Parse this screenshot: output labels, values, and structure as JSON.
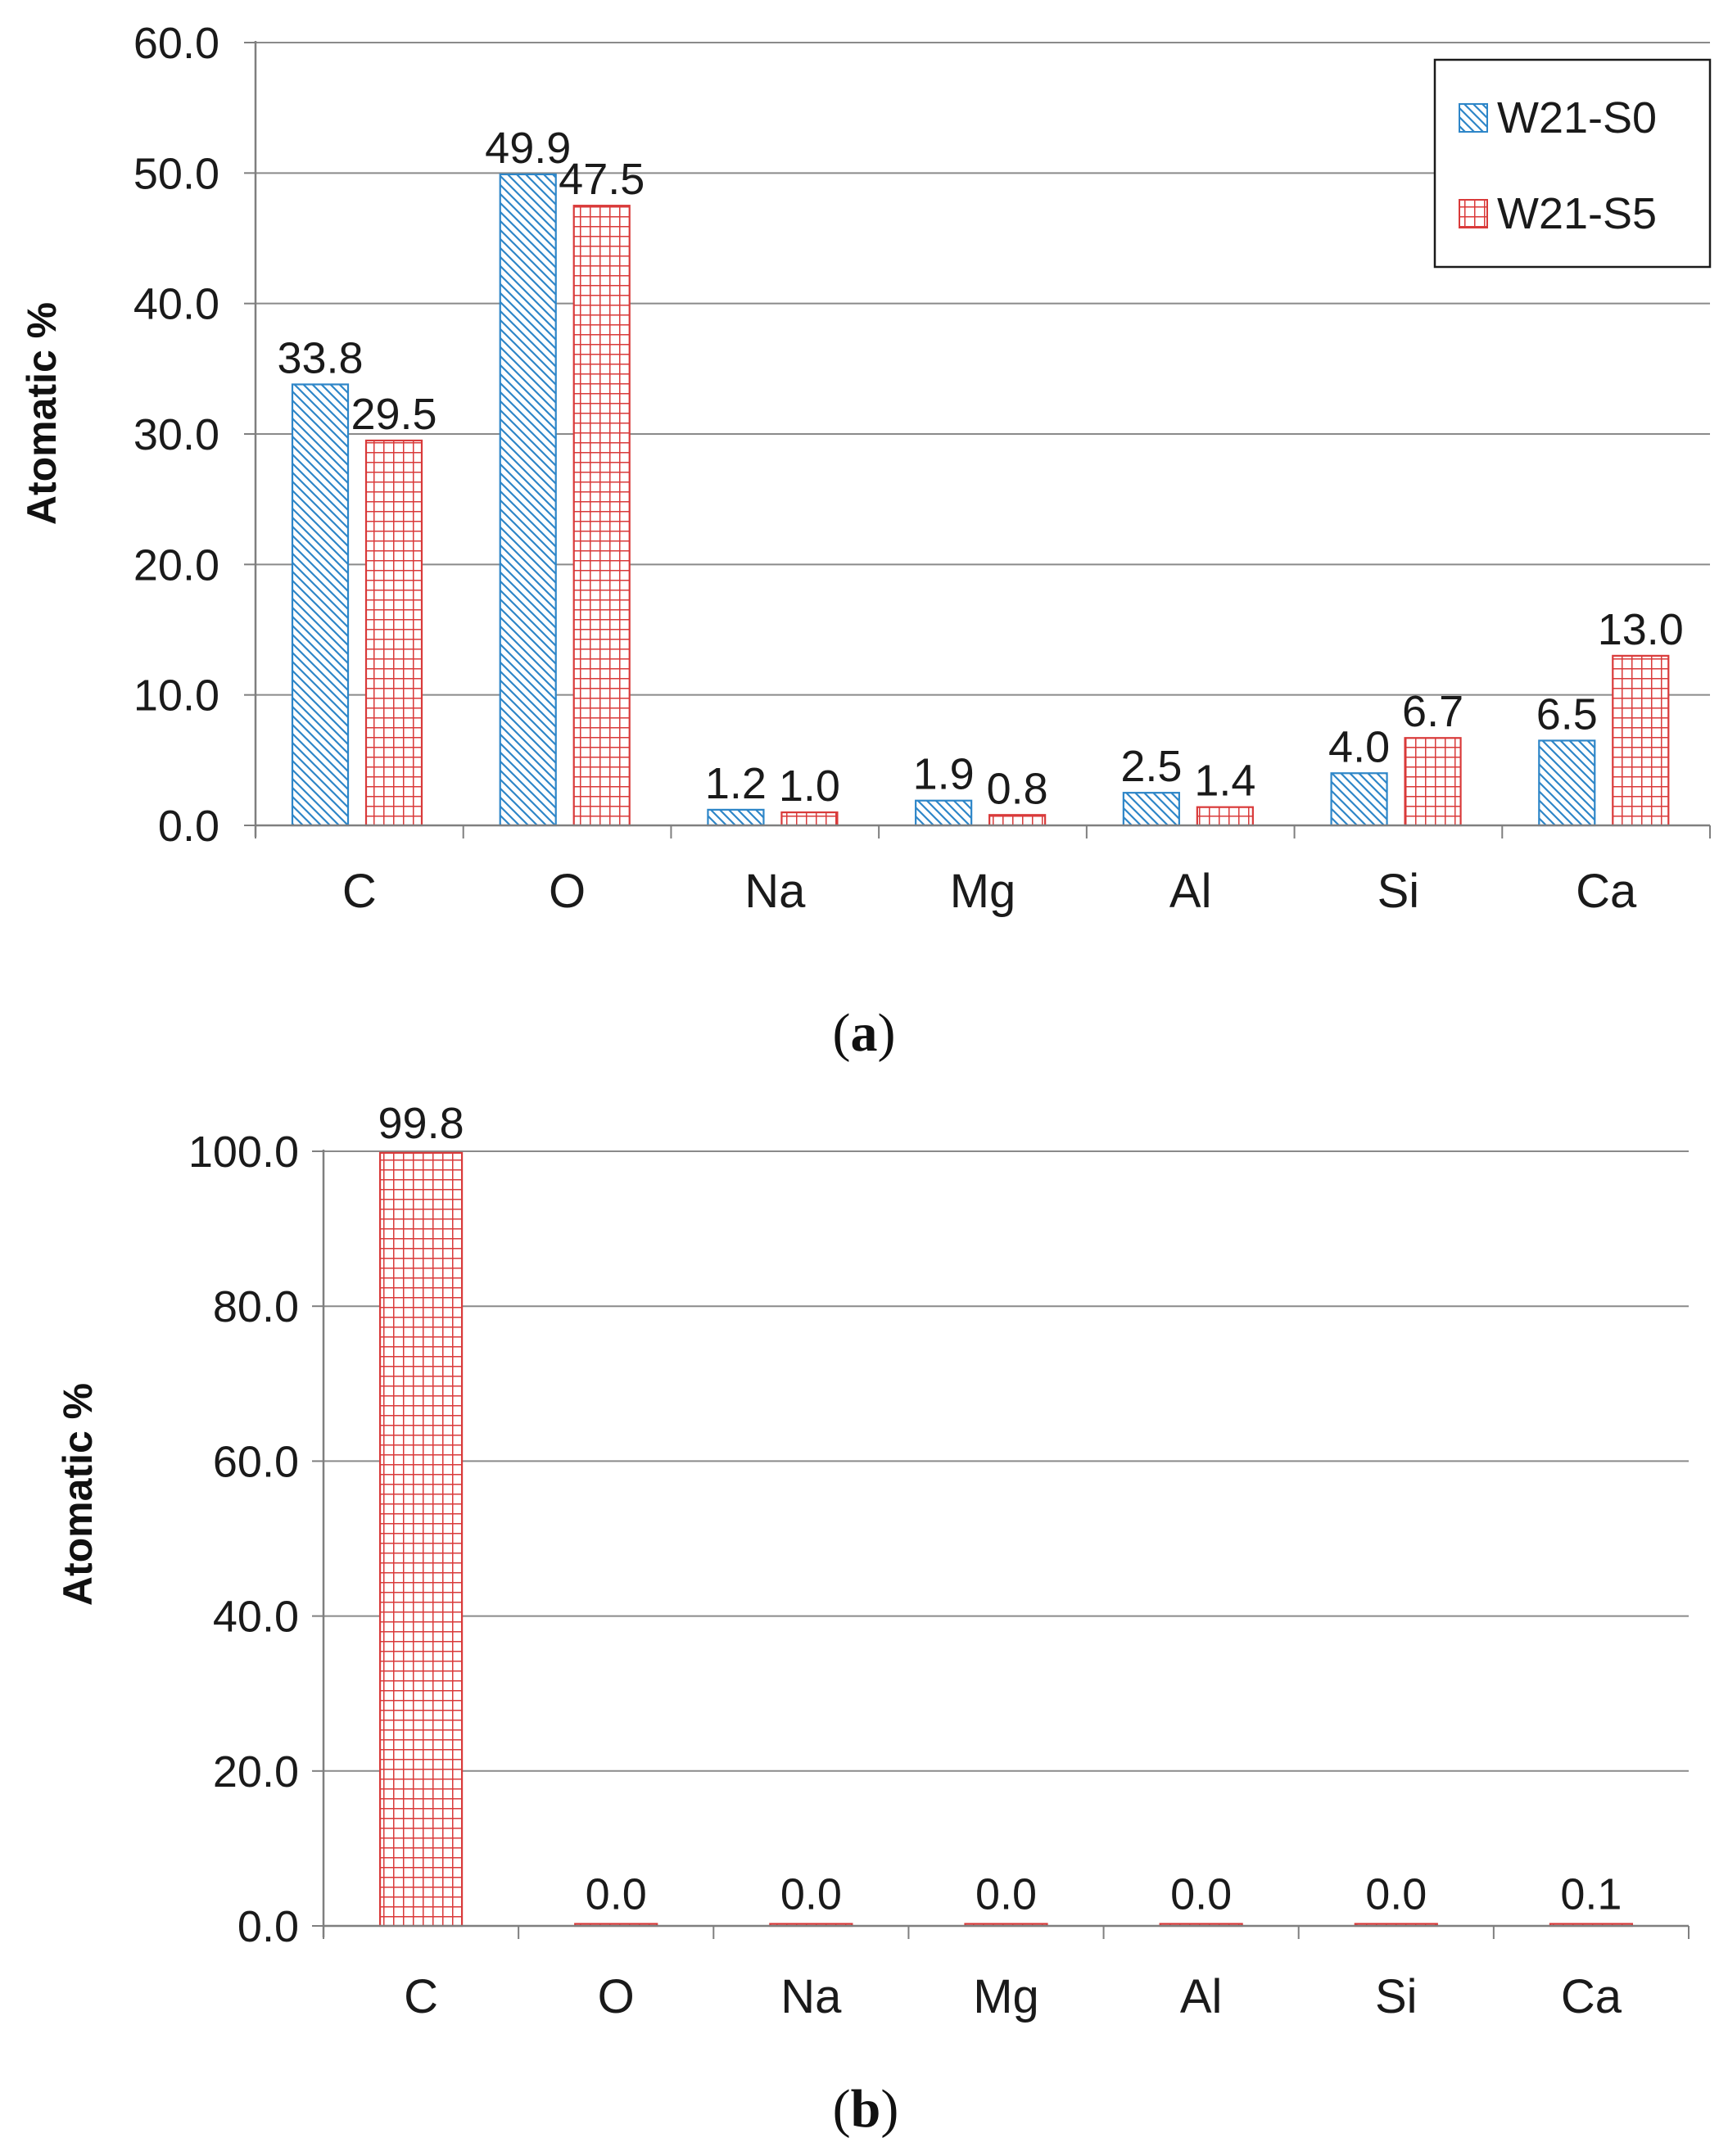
{
  "colors": {
    "series_s0": "#2E86C8",
    "series_s5": "#D93A3A",
    "grid": "#8a8a8a",
    "axis": "#7f7f7f",
    "text": "#1a1a1a"
  },
  "chart_data": [
    {
      "type": "bar",
      "panel_label": "a",
      "categories": [
        "C",
        "O",
        "Na",
        "Mg",
        "Al",
        "Si",
        "Ca"
      ],
      "series": [
        {
          "name": "W21-S0",
          "pattern": "diagonal-hatch",
          "values": [
            33.8,
            49.9,
            1.2,
            1.9,
            2.5,
            4.0,
            6.5
          ]
        },
        {
          "name": "W21-S5",
          "pattern": "grid",
          "values": [
            29.5,
            47.5,
            1.0,
            0.8,
            1.4,
            6.7,
            13.0
          ]
        }
      ],
      "data_labels": {
        "W21-S0": [
          "33.8",
          "49.9",
          "1.2",
          "1.9",
          "2.5",
          "4.0",
          "6.5"
        ],
        "W21-S5": [
          "29.5",
          "47.5",
          "1.0",
          "0.8",
          "1.4",
          "6.7",
          "13.0"
        ]
      },
      "yticks": [
        "0.0",
        "10.0",
        "20.0",
        "30.0",
        "40.0",
        "50.0",
        "60.0"
      ],
      "ylim": [
        0,
        60
      ],
      "ylabel": "Atomatic %",
      "xlabel": "",
      "grid": true,
      "legend": "top-right"
    },
    {
      "type": "bar",
      "panel_label": "b",
      "categories": [
        "C",
        "O",
        "Na",
        "Mg",
        "Al",
        "Si",
        "Ca"
      ],
      "series": [
        {
          "name": "W21-S5",
          "pattern": "grid",
          "values": [
            99.8,
            0.0,
            0.0,
            0.0,
            0.0,
            0.0,
            0.1
          ]
        }
      ],
      "data_labels": {
        "W21-S5": [
          "99.8",
          "0.0",
          "0.0",
          "0.0",
          "0.0",
          "0.0",
          "0.1"
        ]
      },
      "yticks": [
        "0.0",
        "20.0",
        "40.0",
        "60.0",
        "80.0",
        "100.0"
      ],
      "ylim": [
        0,
        100
      ],
      "ylabel": "Atomatic %",
      "xlabel": "",
      "grid": true,
      "legend": "none"
    }
  ]
}
